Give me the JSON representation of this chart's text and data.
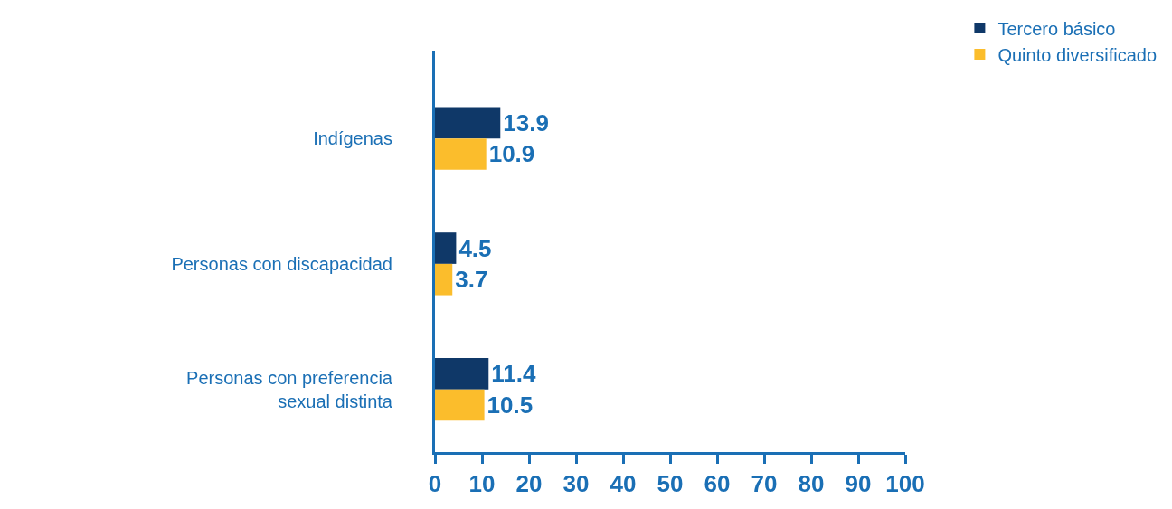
{
  "chart_data": {
    "type": "bar",
    "orientation": "horizontal",
    "categories": [
      "Indígenas",
      "Personas con discapacidad",
      "Personas con preferencia\nsexual distinta"
    ],
    "series": [
      {
        "name": "Tercero básico",
        "color": "#0f3868",
        "values": [
          13.9,
          4.5,
          11.4
        ]
      },
      {
        "name": "Quinto diversificado",
        "color": "#fbbd2c",
        "values": [
          10.9,
          3.7,
          10.5
        ]
      }
    ],
    "xlim": [
      0,
      100
    ],
    "xticks": [
      0,
      10,
      20,
      30,
      40,
      50,
      60,
      70,
      80,
      90,
      100
    ],
    "data_labels": true,
    "legend": "top right"
  }
}
